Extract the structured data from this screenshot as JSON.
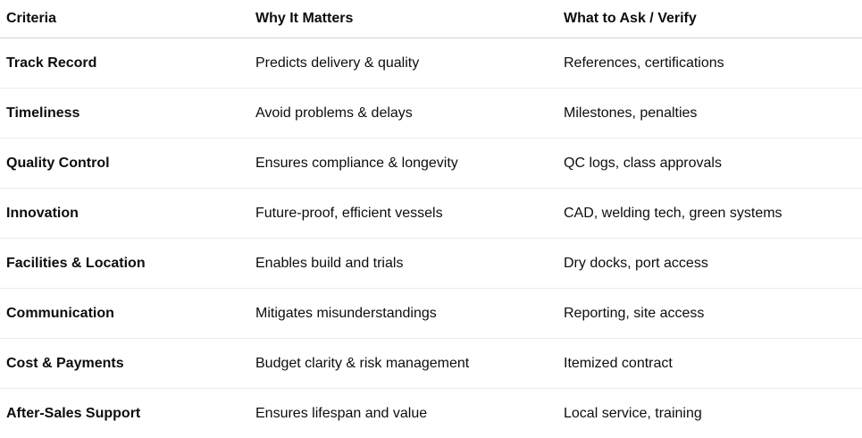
{
  "table": {
    "headers": [
      "Criteria",
      "Why It Matters",
      "What to Ask / Verify"
    ],
    "rows": [
      [
        "Track Record",
        "Predicts delivery & quality",
        "References, certifications"
      ],
      [
        "Timeliness",
        "Avoid problems & delays",
        "Milestones, penalties"
      ],
      [
        "Quality Control",
        "Ensures compliance & longevity",
        "QC logs, class approvals"
      ],
      [
        "Innovation",
        "Future-proof, efficient vessels",
        "CAD, welding tech, green systems"
      ],
      [
        "Facilities & Location",
        "Enables build and trials",
        "Dry docks, port access"
      ],
      [
        "Communication",
        "Mitigates misunderstandings",
        "Reporting, site access"
      ],
      [
        "Cost & Payments",
        "Budget clarity & risk management",
        "Itemized contract"
      ],
      [
        "After-Sales Support",
        "Ensures lifespan and value",
        "Local service, training"
      ]
    ]
  }
}
